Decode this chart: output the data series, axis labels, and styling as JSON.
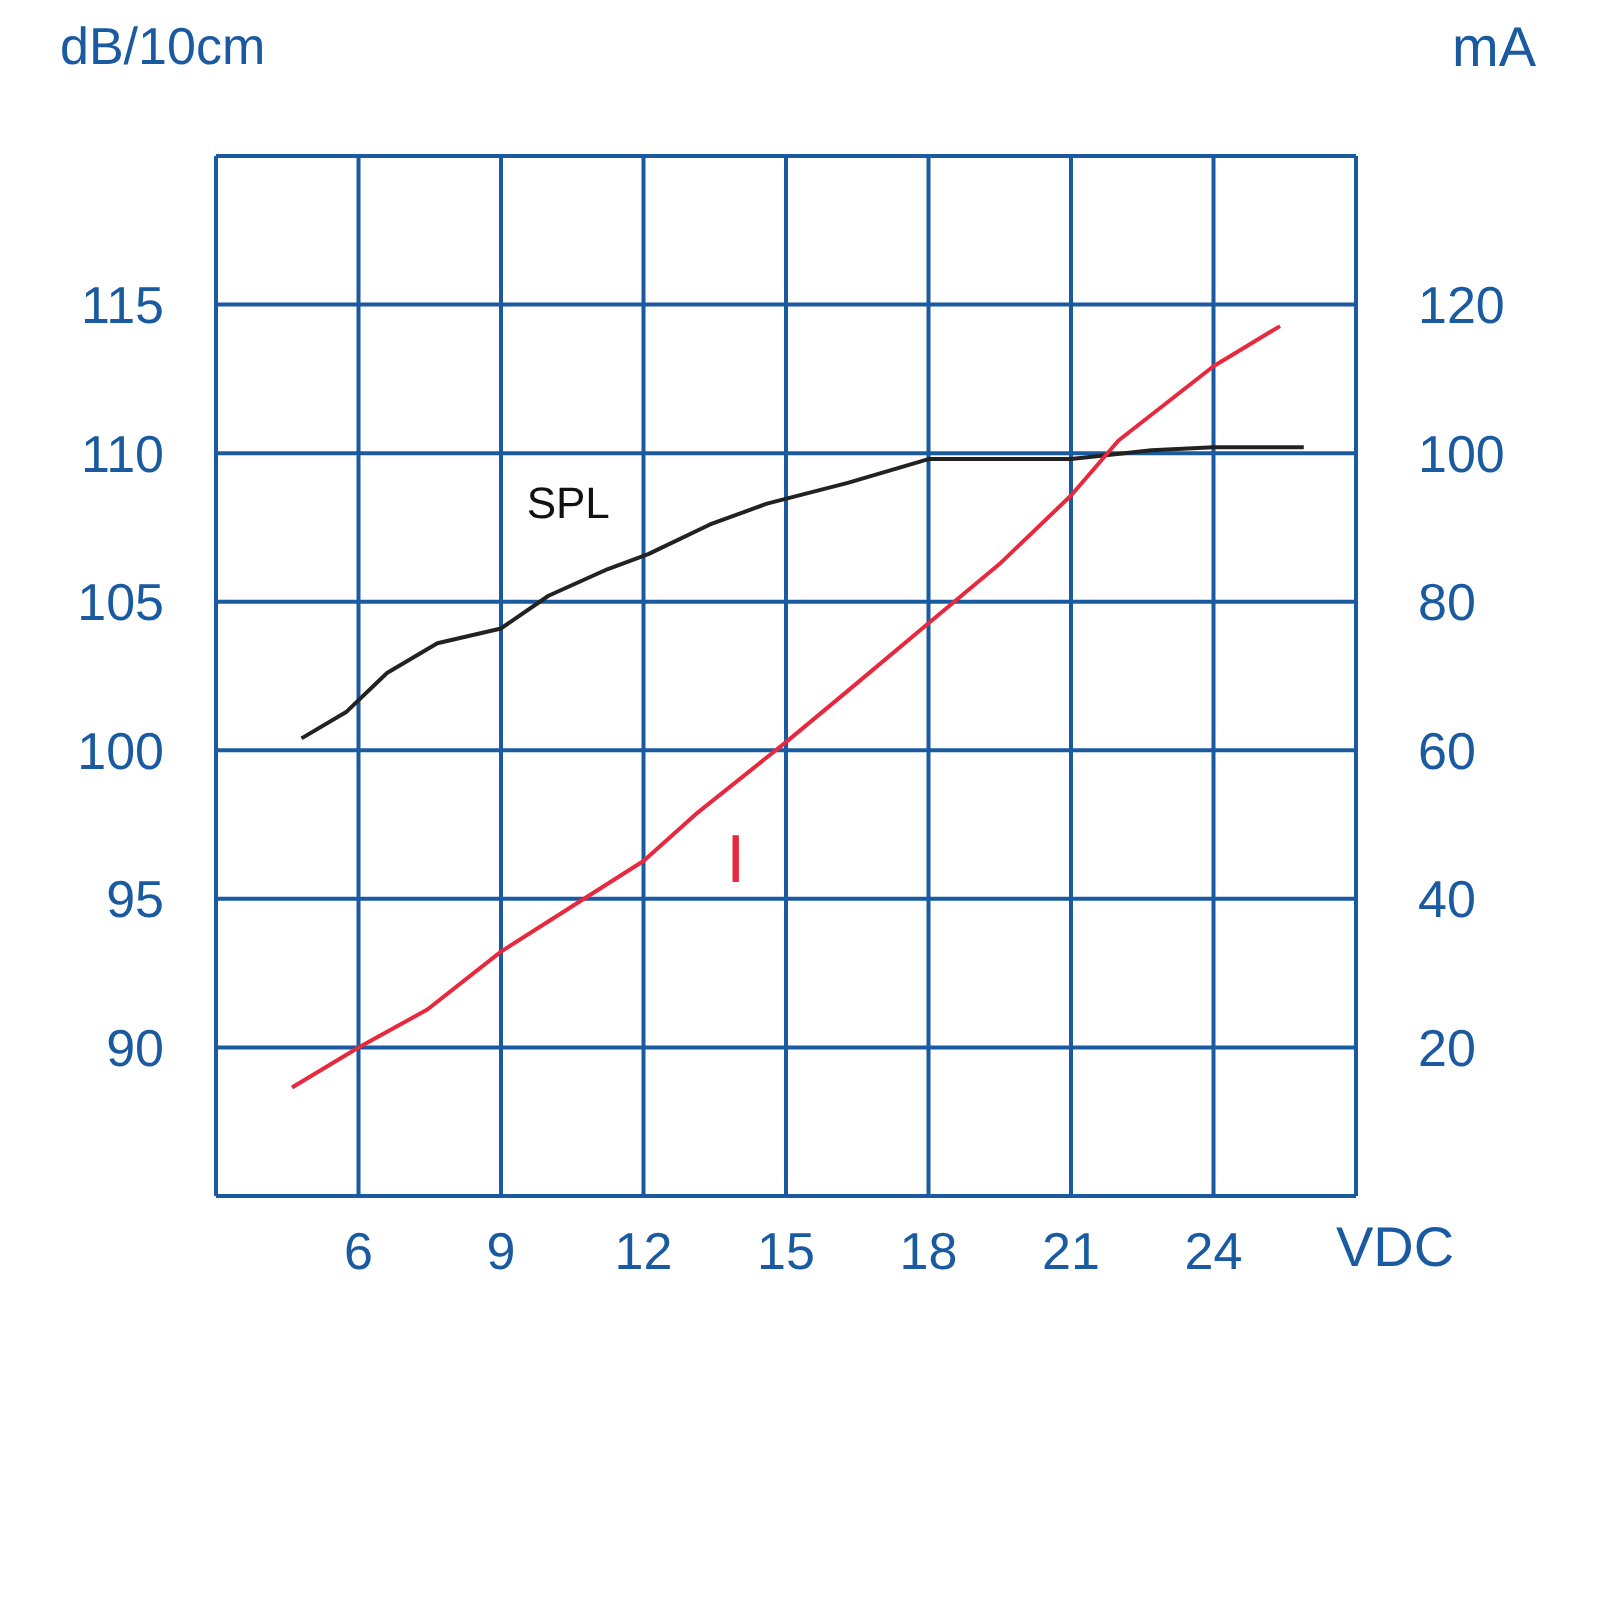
{
  "chart_data": {
    "type": "line",
    "xlabel": "VDC",
    "ylabel": "dB/10cm",
    "y2label": "mA",
    "xlim": [
      3,
      27
    ],
    "xticks": [
      {
        "value": 3,
        "label": null
      },
      6,
      9,
      12,
      15,
      18,
      21,
      24,
      {
        "value": 27,
        "label": null
      }
    ],
    "ylim": [
      85,
      120
    ],
    "yticks": [
      {
        "value": 85,
        "label": null
      },
      90,
      95,
      100,
      105,
      110,
      115,
      {
        "value": 120,
        "label": null
      }
    ],
    "y2lim": [
      0,
      140
    ],
    "y2ticks": [
      20,
      40,
      60,
      80,
      100,
      120
    ],
    "grid": true,
    "marker": "none",
    "line_style": "solid",
    "series": [
      {
        "name": "SPL",
        "color": "#222222",
        "x": [
          4.8,
          5.75,
          6.6,
          7.66,
          9,
          10,
          11.25,
          12.1,
          13.4,
          14.6,
          16.3,
          18,
          21,
          22.7,
          24,
          25.9
        ],
        "values": [
          100.4,
          101.3,
          102.6,
          103.6,
          104.1,
          105.2,
          106.1,
          106.6,
          107.6,
          108.3,
          109,
          109.8,
          109.8,
          110.1,
          110.2,
          110.2
        ]
      },
      {
        "name": "I",
        "color": "#e8283c",
        "axis": "y2",
        "x": [
          4.6,
          6,
          7.45,
          9,
          10.4,
          12,
          13.1,
          15,
          16.3,
          18,
          19.5,
          21,
          22,
          24,
          25.4
        ],
        "values": [
          14.6,
          20,
          25.1,
          32.9,
          38.6,
          45.1,
          51.4,
          61.1,
          68,
          77.1,
          85.1,
          94.3,
          101.7,
          111.7,
          117.1
        ]
      }
    ]
  }
}
